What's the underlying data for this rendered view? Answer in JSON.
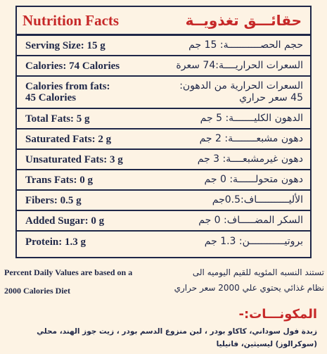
{
  "title": {
    "en": "Nutrition Facts",
    "ar": "حقائـــق تغذويــة"
  },
  "rows": [
    {
      "en": "Serving Size: 15 g",
      "ar": "حجم الحصـــــــــــة: 15 جم"
    },
    {
      "en": "Calories: 74 Calories",
      "ar": "السعرات الحراريــــة:74 سعرة"
    },
    {
      "en": "Calories from fats:\n45 Calories",
      "ar": "السعرات الحرارية من الدهون:\n45 سعر حراري"
    },
    {
      "en": "Total Fats: 5 g",
      "ar": "الدهون الكليـــــــة: 5 جم"
    },
    {
      "en": "Saturated Fats: 2 g",
      "ar": "دهون مشبعــــــــة: 2 جم"
    },
    {
      "en": "Unsaturated Fats: 3 g",
      "ar": "دهون غيرمشبعــــة: 3 جم"
    },
    {
      "en": "Trans Fats: 0 g",
      "ar": "دهون متحولــــــة: 0 جم"
    },
    {
      "en": "Fibers: 0.5 g",
      "ar": "الأليـــــــــــاف:0.5جم"
    },
    {
      "en": "Added Sugar: 0 g",
      "ar": "السكر المضـــــاف: 0 جم"
    },
    {
      "en": "Protein: 1.3 g",
      "ar": "بروتيــــــــــــن: 1.3 جم"
    }
  ],
  "note": {
    "en_line1": "Percent Daily Values are based  on a",
    "en_line2": "2000 Calories Diet",
    "ar_line1": "تستند النسبه المئويه للقيم اليوميه الى",
    "ar_line2": "نظام غذائي يحتوي علي 2000 سعر حراري"
  },
  "ingredients": {
    "title": "المكونـــات:-",
    "text": "زبدة فول سوداني، كاكاو بودر ، لبن منزوع الدسم بودر ، زيت جوز الهند، محلي (سوكرالوز) ليسيثين، فانيليا"
  }
}
